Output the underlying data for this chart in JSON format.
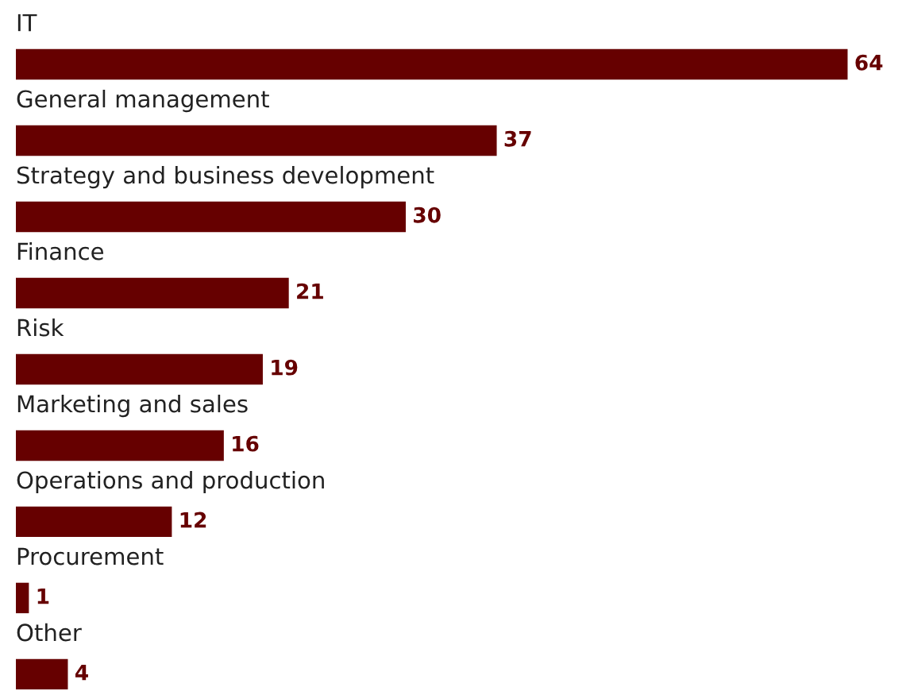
{
  "chart_data": {
    "type": "bar",
    "orientation": "horizontal",
    "categories": [
      "IT",
      "General management",
      "Strategy and business development",
      "Finance",
      "Risk",
      "Marketing and sales",
      "Operations and production",
      "Procurement",
      "Other"
    ],
    "values": [
      64,
      37,
      30,
      21,
      19,
      16,
      12,
      1,
      4
    ],
    "color": "#660000",
    "data_labels": true
  }
}
